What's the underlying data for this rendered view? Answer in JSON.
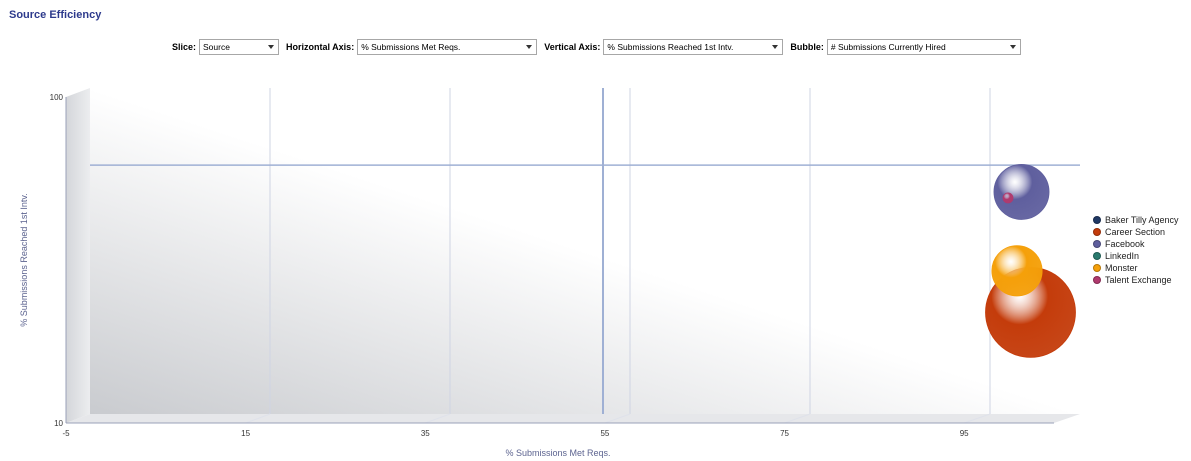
{
  "title": "Source Efficiency",
  "controls": {
    "slice_label": "Slice:",
    "slice_value": "Source",
    "h_axis_label": "Horizontal Axis:",
    "h_axis_value": "% Submissions Met Reqs.",
    "v_axis_label": "Vertical Axis:",
    "v_axis_value": "% Submissions Reached 1st Intv.",
    "bubble_label": "Bubble:",
    "bubble_value": "# Submissions Currently Hired"
  },
  "chart_data": {
    "type": "scatter",
    "subtype": "bubble",
    "xlabel": "% Submissions Met Reqs.",
    "ylabel": "% Submissions Reached 1st Intv.",
    "xlim": [
      -5,
      105
    ],
    "ylim": [
      10,
      100
    ],
    "y_scale": "log",
    "x_ticks": [
      -5,
      15,
      35,
      55,
      75,
      95
    ],
    "y_ticks": [
      10,
      100
    ],
    "reference_lines": {
      "x": 52,
      "y": 58
    },
    "legend_position": "right",
    "series": [
      {
        "name": "Baker Tilly Agency",
        "color": "#1f3864",
        "x": null,
        "y": null,
        "size": 0
      },
      {
        "name": "Career Section",
        "color": "#c43c0b",
        "x": 99.5,
        "y": 20.5,
        "size": 8
      },
      {
        "name": "Facebook",
        "color": "#5f5f9e",
        "x": 98.5,
        "y": 48,
        "size": 3
      },
      {
        "name": "LinkedIn",
        "color": "#2a7a6e",
        "x": null,
        "y": null,
        "size": 0
      },
      {
        "name": "Monster",
        "color": "#f5a00a",
        "x": 98,
        "y": 27.5,
        "size": 2.5
      },
      {
        "name": "Talent Exchange",
        "color": "#b03a6e",
        "x": 97,
        "y": 46,
        "size": 0.1
      }
    ]
  }
}
